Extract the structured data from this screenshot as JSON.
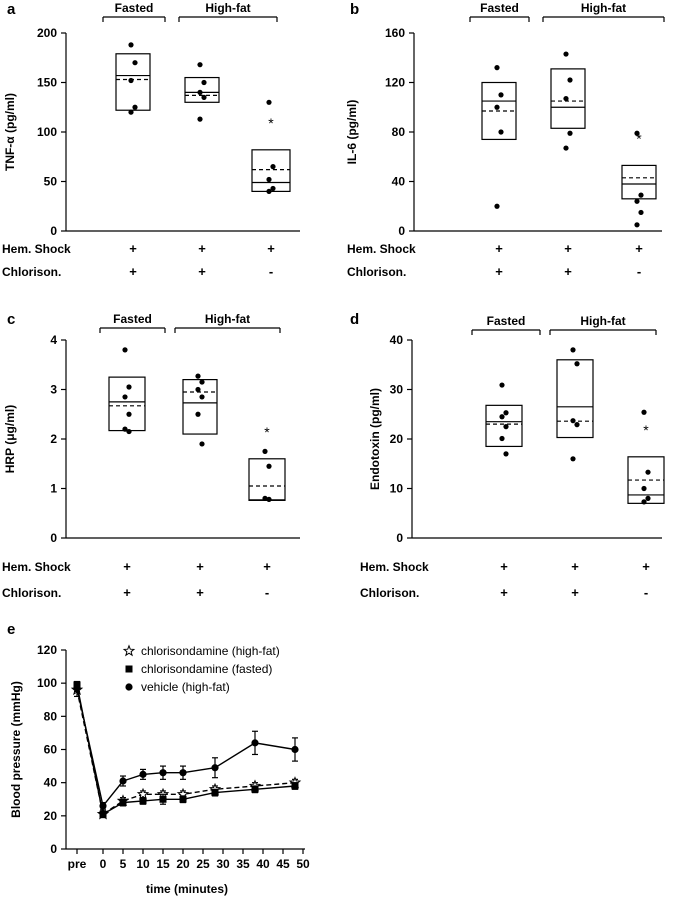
{
  "chart_data": [
    {
      "panel": "a",
      "type": "box",
      "ylabel": "TNF-α (pg/ml)",
      "ylim": [
        0,
        200
      ],
      "yticks": [
        0,
        50,
        100,
        150,
        200
      ],
      "groups": [
        {
          "label": "Fasted",
          "from": 0,
          "to": 1
        },
        {
          "label": "High-fat",
          "from": 1,
          "to": 2
        }
      ],
      "conditions": [
        {
          "label": "Hem. Shock",
          "values": [
            "+",
            "+",
            "+"
          ]
        },
        {
          "label": "Chlorison.",
          "values": [
            "+",
            "+",
            "-"
          ]
        }
      ],
      "boxes": [
        {
          "q1": 122,
          "q3": 179,
          "median": 157,
          "mean": 153,
          "points": [
            188,
            170,
            152,
            125,
            120
          ]
        },
        {
          "q1": 130,
          "q3": 155,
          "median": 140,
          "mean": 137,
          "points": [
            168,
            150,
            140,
            135,
            113
          ]
        },
        {
          "q1": 40,
          "q3": 82,
          "median": 49,
          "mean": 62,
          "points": [
            130,
            65,
            52,
            43,
            40
          ],
          "star": "*"
        }
      ]
    },
    {
      "panel": "b",
      "type": "box",
      "ylabel": "IL-6 (pg/ml)",
      "ylim": [
        0,
        160
      ],
      "yticks": [
        0,
        40,
        80,
        120,
        160
      ],
      "groups": [
        {
          "label": "Fasted",
          "from": 0,
          "to": 1
        },
        {
          "label": "High-fat",
          "from": 1,
          "to": 2
        }
      ],
      "conditions": [
        {
          "label": "Hem. Shock",
          "values": [
            "+",
            "+",
            "+"
          ]
        },
        {
          "label": "Chlorison.",
          "values": [
            "+",
            "+",
            "-"
          ]
        }
      ],
      "boxes": [
        {
          "q1": 74,
          "q3": 120,
          "median": 105,
          "mean": 97,
          "points": [
            132,
            110,
            100,
            80,
            20
          ]
        },
        {
          "q1": 83,
          "q3": 131,
          "median": 100,
          "mean": 105,
          "points": [
            143,
            122,
            107,
            79,
            67
          ]
        },
        {
          "q1": 26,
          "q3": 53,
          "median": 38,
          "mean": 43,
          "points": [
            79,
            29,
            24,
            15,
            5
          ],
          "star": "*"
        }
      ]
    },
    {
      "panel": "c",
      "type": "box",
      "ylabel": "HRP (μg/ml)",
      "ylim": [
        0,
        4
      ],
      "yticks": [
        0,
        1,
        2,
        3,
        4
      ],
      "groups": [
        {
          "label": "Fasted",
          "from": 0,
          "to": 1
        },
        {
          "label": "High-fat",
          "from": 1,
          "to": 2
        }
      ],
      "conditions": [
        {
          "label": "Hem. Shock",
          "values": [
            "+",
            "+",
            "+"
          ]
        },
        {
          "label": "Chlorison.",
          "values": [
            "+",
            "+",
            "-"
          ]
        }
      ],
      "boxes": [
        {
          "q1": 2.17,
          "q3": 3.25,
          "median": 2.75,
          "mean": 2.67,
          "points": [
            3.8,
            3.05,
            2.85,
            2.5,
            2.2,
            2.15
          ]
        },
        {
          "q1": 2.1,
          "q3": 3.2,
          "median": 2.73,
          "mean": 2.95,
          "points": [
            3.27,
            3.15,
            3.0,
            2.85,
            2.5,
            1.9
          ]
        },
        {
          "q1": 0.76,
          "q3": 1.6,
          "median": 0.77,
          "mean": 1.05,
          "points": [
            1.75,
            1.45,
            0.8,
            0.78
          ],
          "star": "*"
        }
      ]
    },
    {
      "panel": "d",
      "type": "box",
      "ylabel": "Endotoxin (pg/ml)",
      "ylim": [
        0,
        40
      ],
      "yticks": [
        0,
        10,
        20,
        30,
        40
      ],
      "groups": [
        {
          "label": "Fasted",
          "from": 0,
          "to": 1
        },
        {
          "label": "High-fat",
          "from": 1,
          "to": 2
        }
      ],
      "conditions": [
        {
          "label": "Hem. Shock",
          "values": [
            "+",
            "+",
            "+"
          ]
        },
        {
          "label": "Chlorison.",
          "values": [
            "+",
            "+",
            "-"
          ]
        }
      ],
      "boxes": [
        {
          "q1": 18.5,
          "q3": 26.8,
          "median": 23.5,
          "mean": 23.0,
          "points": [
            30.9,
            25.3,
            24.5,
            22.5,
            20.1,
            17.0
          ]
        },
        {
          "q1": 20.3,
          "q3": 36.0,
          "median": 26.5,
          "mean": 23.6,
          "points": [
            38.0,
            35.2,
            23.7,
            22.9,
            16.0
          ]
        },
        {
          "q1": 7.0,
          "q3": 16.4,
          "median": 8.7,
          "mean": 11.7,
          "points": [
            25.4,
            13.3,
            10.0,
            8.0,
            7.3
          ],
          "star": "*"
        }
      ]
    },
    {
      "panel": "e",
      "type": "line",
      "ylabel": "Blood pressure (mmHg)",
      "xlabel": "time (minutes)",
      "ylim": [
        0,
        120
      ],
      "yticks": [
        0,
        20,
        40,
        60,
        80,
        100,
        120
      ],
      "xlim": [
        0,
        50
      ],
      "xticks": [
        0,
        5,
        10,
        15,
        20,
        25,
        30,
        35,
        40,
        45,
        50
      ],
      "pre_label": "pre",
      "series": [
        {
          "name": "chlorisondamine (high-fat)",
          "marker": "star",
          "dashed": true,
          "x": [
            "pre",
            0,
            5,
            10,
            15,
            20,
            28,
            38,
            48
          ],
          "y": [
            96,
            21,
            29,
            33,
            33,
            33,
            36,
            38,
            40
          ],
          "err": [
            4,
            2,
            2,
            2,
            2,
            2,
            2,
            2,
            2
          ]
        },
        {
          "name": "chlorisondamine (fasted)",
          "marker": "square",
          "dashed": false,
          "x": [
            "pre",
            0,
            5,
            10,
            15,
            20,
            28,
            38,
            48
          ],
          "y": [
            99,
            21,
            28,
            29,
            30,
            30,
            34,
            36,
            38
          ],
          "err": [
            2,
            2,
            2,
            2,
            3,
            2,
            2,
            2,
            2
          ]
        },
        {
          "name": "vehicle (high-fat)",
          "marker": "circle",
          "dashed": false,
          "x": [
            "pre",
            0,
            5,
            10,
            15,
            20,
            28,
            38,
            48
          ],
          "y": [
            97,
            26,
            41,
            45,
            46,
            46,
            49,
            64,
            60
          ],
          "err": [
            2,
            2,
            3,
            3,
            4,
            4,
            6,
            7,
            7
          ]
        }
      ]
    }
  ]
}
